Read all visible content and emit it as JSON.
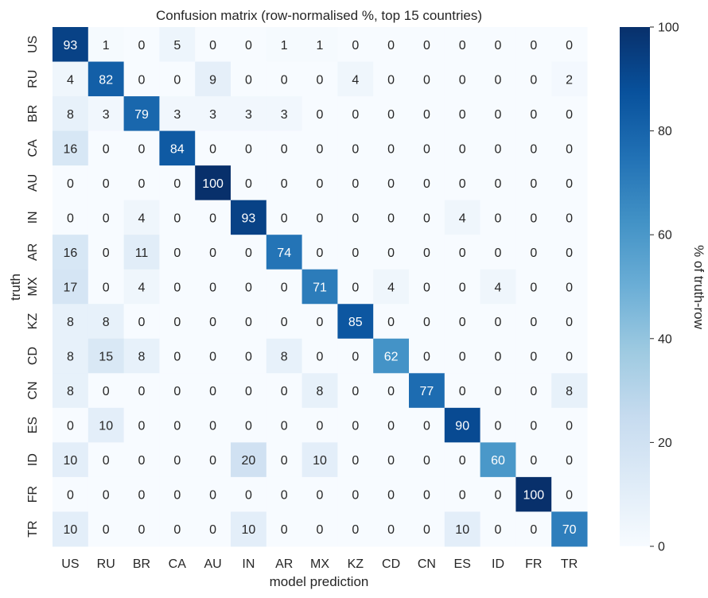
{
  "chart_data": {
    "type": "heatmap",
    "title": "Confusion matrix (row-normalised %, top 15 countries)",
    "xlabel": "model prediction",
    "ylabel": "truth",
    "x_categories": [
      "US",
      "RU",
      "BR",
      "CA",
      "AU",
      "IN",
      "AR",
      "MX",
      "KZ",
      "CD",
      "CN",
      "ES",
      "ID",
      "FR",
      "TR"
    ],
    "y_categories": [
      "US",
      "RU",
      "BR",
      "CA",
      "AU",
      "IN",
      "AR",
      "MX",
      "KZ",
      "CD",
      "CN",
      "ES",
      "ID",
      "FR",
      "TR"
    ],
    "values": [
      [
        93,
        1,
        0,
        5,
        0,
        0,
        1,
        1,
        0,
        0,
        0,
        0,
        0,
        0,
        0
      ],
      [
        4,
        82,
        0,
        0,
        9,
        0,
        0,
        0,
        4,
        0,
        0,
        0,
        0,
        0,
        2
      ],
      [
        8,
        3,
        79,
        3,
        3,
        3,
        3,
        0,
        0,
        0,
        0,
        0,
        0,
        0,
        0
      ],
      [
        16,
        0,
        0,
        84,
        0,
        0,
        0,
        0,
        0,
        0,
        0,
        0,
        0,
        0,
        0
      ],
      [
        0,
        0,
        0,
        0,
        100,
        0,
        0,
        0,
        0,
        0,
        0,
        0,
        0,
        0,
        0
      ],
      [
        0,
        0,
        4,
        0,
        0,
        93,
        0,
        0,
        0,
        0,
        0,
        4,
        0,
        0,
        0
      ],
      [
        16,
        0,
        11,
        0,
        0,
        0,
        74,
        0,
        0,
        0,
        0,
        0,
        0,
        0,
        0
      ],
      [
        17,
        0,
        4,
        0,
        0,
        0,
        0,
        71,
        0,
        4,
        0,
        0,
        4,
        0,
        0
      ],
      [
        8,
        8,
        0,
        0,
        0,
        0,
        0,
        0,
        85,
        0,
        0,
        0,
        0,
        0,
        0
      ],
      [
        8,
        15,
        8,
        0,
        0,
        0,
        8,
        0,
        0,
        62,
        0,
        0,
        0,
        0,
        0
      ],
      [
        8,
        0,
        0,
        0,
        0,
        0,
        0,
        8,
        0,
        0,
        77,
        0,
        0,
        0,
        8
      ],
      [
        0,
        10,
        0,
        0,
        0,
        0,
        0,
        0,
        0,
        0,
        0,
        90,
        0,
        0,
        0
      ],
      [
        10,
        0,
        0,
        0,
        0,
        20,
        0,
        10,
        0,
        0,
        0,
        0,
        60,
        0,
        0
      ],
      [
        0,
        0,
        0,
        0,
        0,
        0,
        0,
        0,
        0,
        0,
        0,
        0,
        0,
        100,
        0
      ],
      [
        10,
        0,
        0,
        0,
        0,
        10,
        0,
        0,
        0,
        0,
        0,
        10,
        0,
        0,
        70
      ]
    ],
    "colorbar": {
      "label": "% of truth-row",
      "range": [
        0,
        100
      ],
      "ticks": [
        0,
        20,
        40,
        60,
        80,
        100
      ],
      "colormap": "Blues",
      "low_color": "#f7fbff",
      "high_color": "#08306b"
    }
  }
}
